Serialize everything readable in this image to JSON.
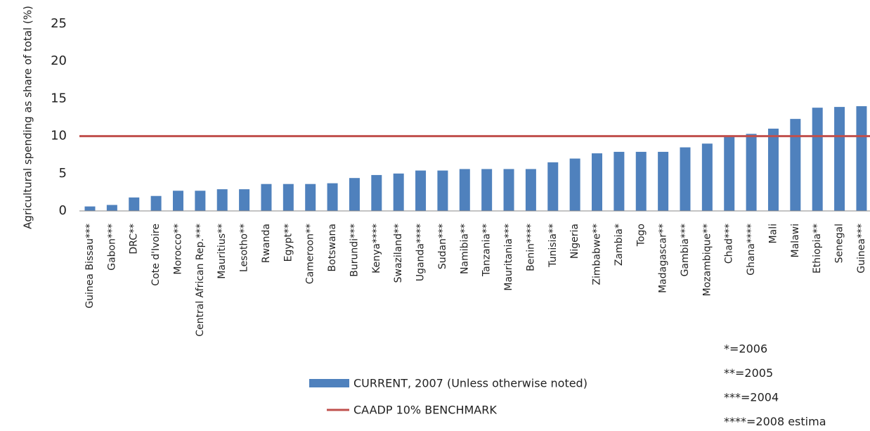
{
  "chart_data": {
    "type": "bar",
    "ylabel": "Agricultural spending as share of total (%)",
    "categories": [
      "Guinea Bissau***",
      "Gabon***",
      "DRC**",
      "Cote d'Ivoire",
      "Morocco**",
      "Central African Rep.***",
      "Mauritius**",
      "Lesotho**",
      "Rwanda",
      "Egypt**",
      "Cameroon**",
      "Botswana",
      "Burundi***",
      "Kenya****",
      "Swaziland**",
      "Uganda****",
      "Sudan***",
      "Namibia**",
      "Tanzania**",
      "Mauritania***",
      "Benin****",
      "Tunisia**",
      "Nigeria",
      "Zimbabwe**",
      "Zambia*",
      "Togo",
      "Madagascar**",
      "Gambia***",
      "Mozambique**",
      "Chad***",
      "Ghana****",
      "Mali",
      "Malawi",
      "Ethiopia**",
      "Senegal",
      "Guinea***"
    ],
    "series": [
      {
        "name": "CURRENT, 2007 (Unless otherwise noted)",
        "color": "#4f81bd",
        "values": [
          0.6,
          0.8,
          1.8,
          2.0,
          2.7,
          2.7,
          2.9,
          2.9,
          3.6,
          3.6,
          3.6,
          3.7,
          4.4,
          4.8,
          5.0,
          5.4,
          5.4,
          5.6,
          5.6,
          5.6,
          5.6,
          6.5,
          7.0,
          7.7,
          7.9,
          7.9,
          7.9,
          8.5,
          9.0,
          9.9,
          10.3,
          11.0,
          12.3,
          13.8,
          13.9,
          14.0
        ]
      }
    ],
    "benchmark": {
      "name": "CAADP 10% BENCHMARK",
      "value": 10,
      "color": "#c0504d"
    },
    "ylim": [
      0,
      25
    ],
    "yticks": [
      0,
      5,
      10,
      15,
      20,
      25
    ],
    "notes": [
      "*=2006",
      "**=2005",
      "***=2004",
      "****=2008 estima"
    ]
  }
}
